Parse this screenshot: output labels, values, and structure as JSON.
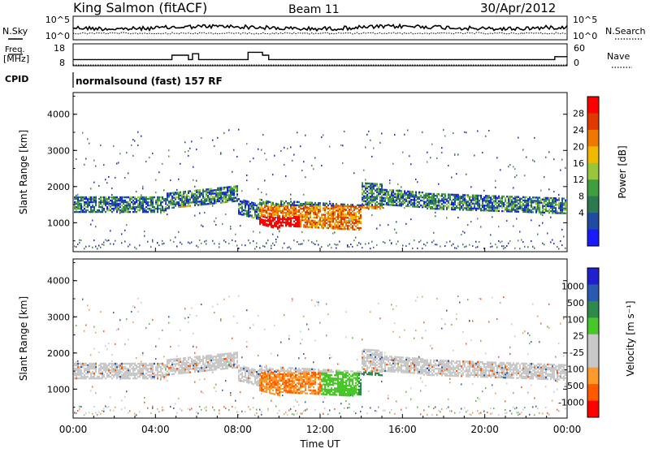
{
  "header": {
    "station": "King Salmon (fitACF)",
    "beam": "Beam 11",
    "date": "30/Apr/2012"
  },
  "panels": {
    "nsky_label": "N.Sky",
    "nsky_ticks": [
      "10^5",
      "10^0"
    ],
    "nsearch_label": "N.Search",
    "nsearch_ticks": [
      "10^5",
      "10^0"
    ],
    "freq_label_1": "Freq.",
    "freq_label_2": "[MHz]",
    "freq_ticks": [
      "18",
      "8"
    ],
    "nave_label": "Nave",
    "nave_ticks": [
      "60",
      "0"
    ],
    "cpid_label": "CPID",
    "cpid_text": "normalsound (fast) 157 RF"
  },
  "colors": {
    "power": [
      "#1a1aff",
      "#1f4ba0",
      "#2e7a50",
      "#3f9e3f",
      "#98c83a",
      "#f0b800",
      "#f07800",
      "#e03a00",
      "#ff0000"
    ],
    "velocity": [
      "#ff0000",
      "#ff5a00",
      "#ff9a2a",
      "#c8c8c8",
      "#c8c8c8",
      "#48c828",
      "#2e8a4a",
      "#2a5ab0",
      "#2020d0"
    ]
  },
  "chart_data": [
    {
      "type": "heatmap",
      "name": "power",
      "ylabel": "Slant Range [km]",
      "ylim": [
        200,
        4600
      ],
      "yticks": [
        1000,
        2000,
        3000,
        4000
      ],
      "xlim": [
        0,
        24
      ],
      "colorbar_label": "Power [dB]",
      "colorbar_ticks": [
        4,
        8,
        12,
        16,
        20,
        24,
        28
      ],
      "colorbar_range": [
        0,
        32
      ]
    },
    {
      "type": "heatmap",
      "name": "velocity",
      "ylabel": "Slant Range [km]",
      "ylim": [
        200,
        4600
      ],
      "yticks": [
        1000,
        2000,
        3000,
        4000
      ],
      "xlim": [
        0,
        24
      ],
      "xticks": [
        "00:00",
        "04:00",
        "08:00",
        "12:00",
        "16:00",
        "20:00",
        "00:00"
      ],
      "xlabel": "Time UT",
      "colorbar_label": "Velocity [m s^-1]",
      "colorbar_ticks": [
        "1000",
        "500",
        "100",
        "25",
        "-25",
        "-100",
        "-500",
        "-1000"
      ]
    }
  ]
}
